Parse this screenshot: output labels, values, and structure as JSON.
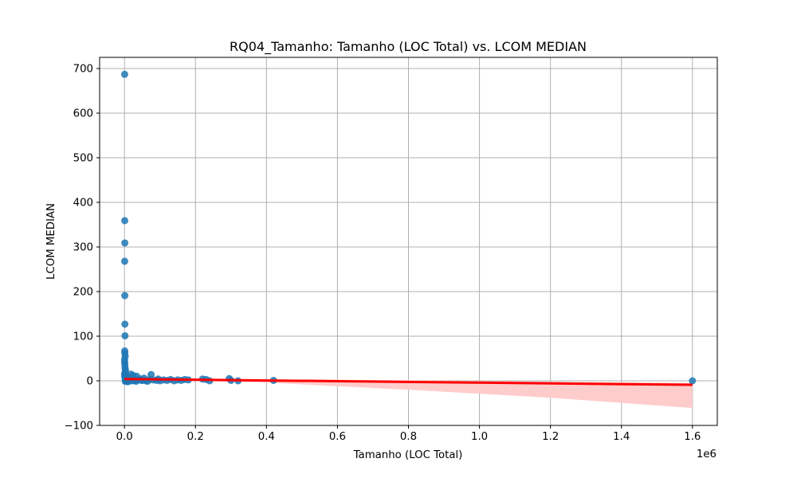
{
  "chart_data": {
    "type": "scatter",
    "title": "RQ04_Tamanho: Tamanho (LOC Total) vs. LCOM MEDIAN",
    "xlabel": "Tamanho (LOC Total)",
    "ylabel": "LCOM MEDIAN",
    "x_scale_label": "1e6",
    "x_axis_multiplier": 1000000,
    "xlim": [
      -70000,
      1670000
    ],
    "ylim": [
      -100,
      725
    ],
    "x_ticks": [
      0,
      200000,
      400000,
      600000,
      800000,
      1000000,
      1200000,
      1400000,
      1600000
    ],
    "x_tick_labels": [
      "0.0",
      "0.2",
      "0.4",
      "0.6",
      "0.8",
      "1.0",
      "1.2",
      "1.4",
      "1.6"
    ],
    "y_ticks": [
      -100,
      0,
      100,
      200,
      300,
      400,
      500,
      600,
      700
    ],
    "y_tick_labels": [
      "−100",
      "0",
      "100",
      "200",
      "300",
      "400",
      "500",
      "600",
      "700"
    ],
    "grid": true,
    "point_color": "#1f77b4",
    "regression_color": "#ff0000",
    "ci_color": "#ffcccc",
    "regression_line": {
      "x": [
        0,
        1600000
      ],
      "y": [
        4,
        -9
      ]
    },
    "confidence_band": {
      "x": [
        0,
        100000,
        200000,
        400000,
        800000,
        1200000,
        1600000
      ],
      "upper": [
        6,
        5,
        4.5,
        3.5,
        1,
        -2,
        -5
      ],
      "lower": [
        2,
        1.5,
        0,
        -4,
        -20,
        -38,
        -61
      ]
    },
    "points": {
      "x": [
        500,
        800,
        1000,
        600,
        900,
        1200,
        1500,
        700,
        1100,
        2000,
        400,
        600,
        1000,
        1500,
        2500,
        3000,
        500,
        800,
        1200,
        2000,
        3000,
        4000,
        5000,
        6000,
        8000,
        10000,
        12000,
        15000,
        18000,
        20000,
        25000,
        30000,
        35000,
        40000,
        45000,
        50000,
        55000,
        60000,
        70000,
        75000,
        80000,
        90000,
        95000,
        100000,
        110000,
        120000,
        130000,
        140000,
        150000,
        160000,
        170000,
        180000,
        220000,
        230000,
        240000,
        295000,
        300000,
        320000,
        420000,
        1600000,
        2000,
        5000,
        7000,
        9000,
        12000,
        20000,
        28000,
        33000,
        48000,
        65000
      ],
      "y": [
        687,
        359,
        309,
        268,
        191,
        127,
        101,
        67,
        62,
        55,
        48,
        42,
        37,
        30,
        25,
        20,
        16,
        12,
        9,
        6,
        4,
        3,
        2,
        1,
        0,
        8,
        2,
        5,
        15,
        3,
        12,
        1,
        10,
        2,
        4,
        1,
        6,
        0,
        3,
        14,
        2,
        1,
        4,
        0,
        2,
        1,
        3,
        0,
        2,
        1,
        3,
        2,
        4,
        3,
        0,
        5,
        1,
        0,
        1,
        0,
        -1,
        -1,
        0,
        -2,
        -1,
        0,
        0,
        -1,
        1,
        -1
      ]
    }
  }
}
